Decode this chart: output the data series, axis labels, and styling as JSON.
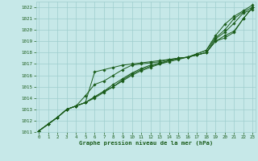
{
  "xlabel_bottom": "Graphe pression niveau de la mer (hPa)",
  "x_ticks": [
    0,
    1,
    2,
    3,
    4,
    5,
    6,
    7,
    8,
    9,
    10,
    11,
    12,
    13,
    14,
    15,
    16,
    17,
    18,
    19,
    20,
    21,
    22,
    23
  ],
  "ylim": [
    1011.0,
    1022.5
  ],
  "xlim": [
    -0.3,
    23.3
  ],
  "yticks": [
    1011,
    1012,
    1013,
    1014,
    1015,
    1016,
    1017,
    1018,
    1019,
    1020,
    1021,
    1022
  ],
  "bg_color": "#c6e8e8",
  "grid_color": "#9ecece",
  "line_color": "#1a5c1a",
  "marker": "D",
  "markersize": 1.8,
  "linewidth": 0.7,
  "series": [
    [
      1011.1,
      1011.7,
      1012.3,
      1013.0,
      1013.3,
      1013.6,
      1014.1,
      1014.6,
      1015.2,
      1015.7,
      1016.2,
      1016.6,
      1016.9,
      1017.1,
      1017.3,
      1017.5,
      1017.6,
      1017.8,
      1018.0,
      1019.2,
      1019.8,
      1020.6,
      1021.5,
      1021.8
    ],
    [
      1011.1,
      1011.7,
      1012.3,
      1013.0,
      1013.3,
      1014.2,
      1015.2,
      1015.5,
      1016.0,
      1016.5,
      1016.9,
      1017.0,
      1017.1,
      1017.2,
      1017.4,
      1017.5,
      1017.6,
      1017.8,
      1018.0,
      1019.0,
      1019.5,
      1019.9,
      1021.0,
      1022.0
    ],
    [
      1011.1,
      1011.7,
      1012.3,
      1013.0,
      1013.3,
      1013.6,
      1014.0,
      1014.5,
      1015.0,
      1015.5,
      1016.0,
      1016.4,
      1016.7,
      1017.0,
      1017.2,
      1017.4,
      1017.6,
      1017.9,
      1018.2,
      1019.5,
      1020.5,
      1021.2,
      1021.7,
      1022.2
    ],
    [
      1011.1,
      1011.7,
      1012.3,
      1013.0,
      1013.3,
      1013.6,
      1014.1,
      1014.6,
      1015.0,
      1015.6,
      1016.1,
      1016.5,
      1016.8,
      1017.0,
      1017.3,
      1017.5,
      1017.6,
      1017.9,
      1018.2,
      1019.3,
      1020.0,
      1021.0,
      1021.6,
      1022.0
    ],
    [
      1011.1,
      1011.7,
      1012.3,
      1013.0,
      1013.3,
      1013.6,
      1016.3,
      1016.5,
      1016.7,
      1016.9,
      1017.0,
      1017.1,
      1017.2,
      1017.3,
      1017.4,
      1017.5,
      1017.6,
      1017.8,
      1018.0,
      1019.0,
      1019.3,
      1019.8,
      1021.0,
      1022.0
    ]
  ]
}
